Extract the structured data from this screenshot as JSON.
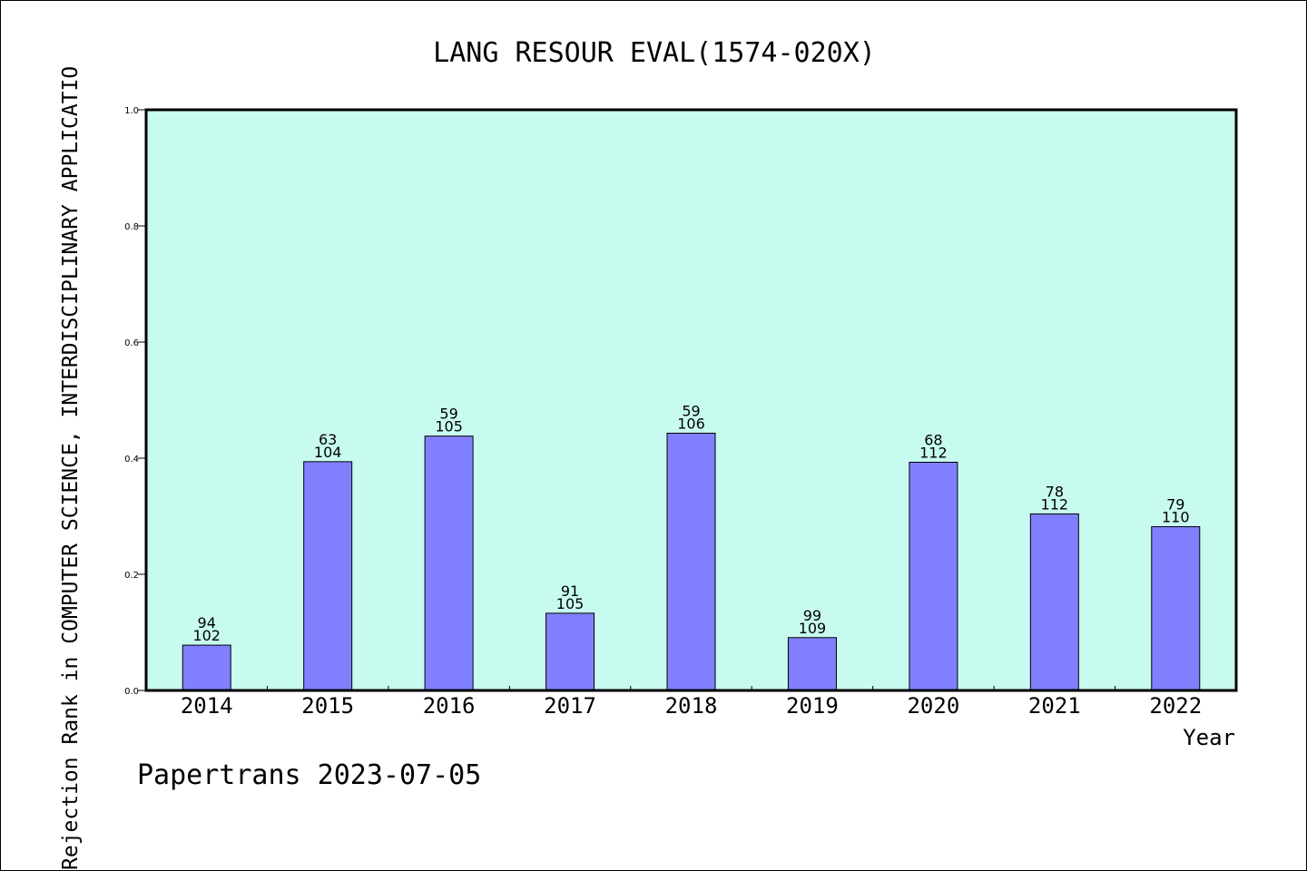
{
  "chart_data": {
    "type": "bar",
    "title": "LANG RESOUR EVAL(1574-020X)",
    "xlabel": "Year",
    "ylabel": "Rejection Rank in COMPUTER SCIENCE, INTERDISCIPLINARY APPLICATIO",
    "ylim": [
      0,
      1.0
    ],
    "yticks": [
      "0.0",
      "0.2",
      "0.4",
      "0.6",
      "0.8",
      "1.0"
    ],
    "categories": [
      "2014",
      "2015",
      "2016",
      "2017",
      "2018",
      "2019",
      "2020",
      "2021",
      "2022"
    ],
    "values": [
      0.078,
      0.394,
      0.438,
      0.133,
      0.443,
      0.091,
      0.393,
      0.304,
      0.282
    ],
    "rank_labels": [
      "94",
      "63",
      "59",
      "91",
      "59",
      "99",
      "68",
      "78",
      "79"
    ],
    "total_labels": [
      "102",
      "104",
      "105",
      "105",
      "106",
      "109",
      "112",
      "112",
      "110"
    ],
    "grid": false,
    "colors": {
      "plot_background": "#c8fbef",
      "bar_fill": "#8080ff",
      "axis": "#000000"
    }
  },
  "footer": "Papertrans 2023-07-05"
}
